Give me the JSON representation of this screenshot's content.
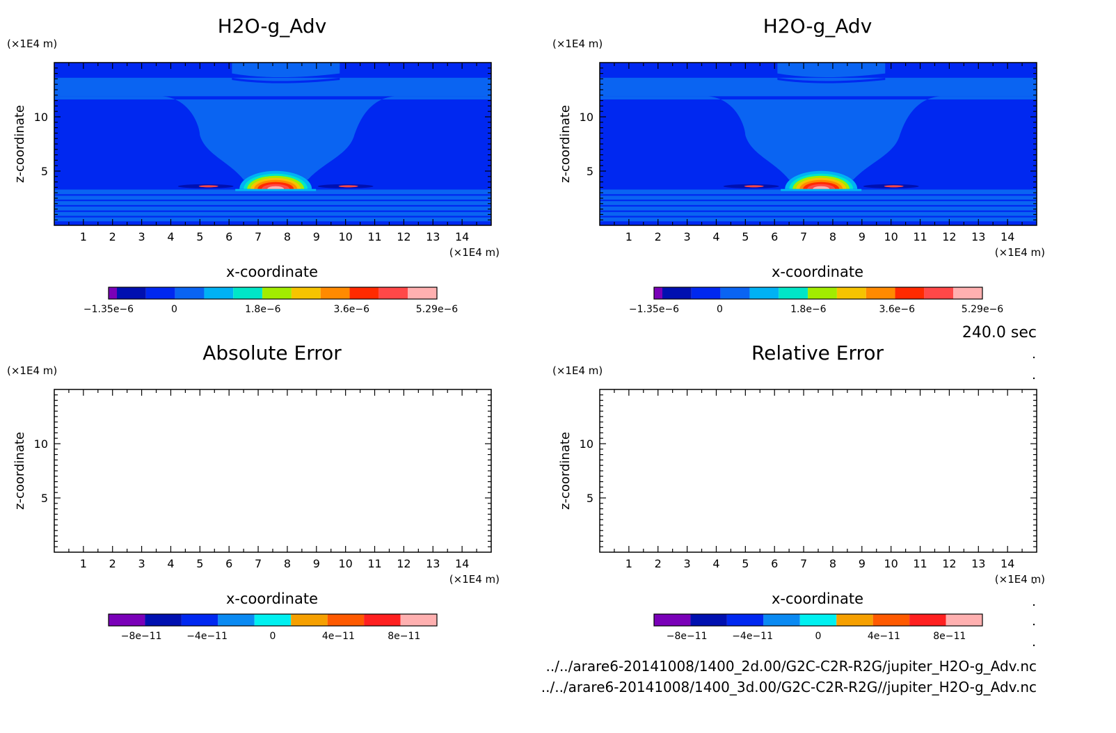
{
  "time_label": "240.0 sec",
  "files": [
    "../../arare6-20141008/1400_2d.00/G2C-C2R-R2G/jupiter_H2O-g_Adv.nc",
    "../../arare6-20141008/1400_3d.00/G2C-C2R-R2G//jupiter_H2O-g_Adv.nc"
  ],
  "chart_data": [
    {
      "type": "heatmap",
      "title": "H2O-g_Adv",
      "xlabel": "x-coordinate",
      "ylabel": "z-coordinate",
      "x_unit": "(×1E4 m)",
      "y_unit": "(×1E4 m)",
      "xlim": [
        0,
        15
      ],
      "ylim": [
        0,
        15
      ],
      "x_ticks": [
        "1",
        "2",
        "3",
        "4",
        "5",
        "6",
        "7",
        "8",
        "9",
        "10",
        "11",
        "12",
        "13",
        "14"
      ],
      "y_ticks": [
        "5",
        "10"
      ],
      "colorbar": {
        "colors": [
          "#7a00b8",
          "#0010b0",
          "#0028f0",
          "#0a64f2",
          "#00b2f4",
          "#00e6c8",
          "#a2ec00",
          "#f6c400",
          "#ff8a00",
          "#ff2a00",
          "#ff4848",
          "#ffb0b0"
        ],
        "tick_labels": [
          "-1.35e-6",
          "0",
          "1.8e-6",
          "3.6e-6",
          "5.29e-6"
        ],
        "tick_fractions": [
          0.0,
          0.2,
          0.47,
          0.74,
          1.0
        ]
      },
      "field": {
        "background_level": "#0028f0",
        "bands_level": "#0a64f2",
        "peak_location_x": 7.6,
        "peak_location_z": 3.8
      }
    },
    {
      "type": "heatmap",
      "title": "H2O-g_Adv",
      "xlabel": "x-coordinate",
      "ylabel": "z-coordinate",
      "x_unit": "(×1E4 m)",
      "y_unit": "(×1E4 m)",
      "xlim": [
        0,
        15
      ],
      "ylim": [
        0,
        15
      ],
      "x_ticks": [
        "1",
        "2",
        "3",
        "4",
        "5",
        "6",
        "7",
        "8",
        "9",
        "10",
        "11",
        "12",
        "13",
        "14"
      ],
      "y_ticks": [
        "5",
        "10"
      ],
      "colorbar": {
        "colors": [
          "#7a00b8",
          "#0010b0",
          "#0028f0",
          "#0a64f2",
          "#00b2f4",
          "#00e6c8",
          "#a2ec00",
          "#f6c400",
          "#ff8a00",
          "#ff2a00",
          "#ff4848",
          "#ffb0b0"
        ],
        "tick_labels": [
          "-1.35e-6",
          "0",
          "1.8e-6",
          "3.6e-6",
          "5.29e-6"
        ],
        "tick_fractions": [
          0.0,
          0.2,
          0.47,
          0.74,
          1.0
        ]
      },
      "field": {
        "background_level": "#0028f0",
        "bands_level": "#0a64f2",
        "peak_location_x": 7.6,
        "peak_location_z": 3.8
      }
    },
    {
      "type": "heatmap",
      "title": "Absolute Error",
      "xlabel": "x-coordinate",
      "ylabel": "z-coordinate",
      "x_unit": "(×1E4 m)",
      "y_unit": "(×1E4 m)",
      "xlim": [
        0,
        15
      ],
      "ylim": [
        0,
        15
      ],
      "x_ticks": [
        "1",
        "2",
        "3",
        "4",
        "5",
        "6",
        "7",
        "8",
        "9",
        "10",
        "11",
        "12",
        "13",
        "14"
      ],
      "y_ticks": [
        "5",
        "10"
      ],
      "colorbar": {
        "colors": [
          "#7a00b8",
          "#0010b0",
          "#0028f0",
          "#0a8af2",
          "#00f0f0",
          "#f6a000",
          "#ff5a00",
          "#ff2020",
          "#ffb0b0"
        ],
        "tick_labels": [
          "-8e-11",
          "-4e-11",
          "0",
          "4e-11",
          "8e-11"
        ],
        "tick_fractions": [
          0.1,
          0.3,
          0.5,
          0.7,
          0.9
        ]
      },
      "field": null
    },
    {
      "type": "heatmap",
      "title": "Relative Error",
      "xlabel": "x-coordinate",
      "ylabel": "z-coordinate",
      "x_unit": "(×1E4 m)",
      "y_unit": "(×1E4 m)",
      "xlim": [
        0,
        15
      ],
      "ylim": [
        0,
        15
      ],
      "x_ticks": [
        "1",
        "2",
        "3",
        "4",
        "5",
        "6",
        "7",
        "8",
        "9",
        "10",
        "11",
        "12",
        "13",
        "14"
      ],
      "y_ticks": [
        "5",
        "10"
      ],
      "colorbar": {
        "colors": [
          "#7a00b8",
          "#0010b0",
          "#0028f0",
          "#0a8af2",
          "#00f0f0",
          "#f6a000",
          "#ff5a00",
          "#ff2020",
          "#ffb0b0"
        ],
        "tick_labels": [
          "-8e-11",
          "-4e-11",
          "0",
          "4e-11",
          "8e-11"
        ],
        "tick_fractions": [
          0.1,
          0.3,
          0.5,
          0.7,
          0.9
        ]
      },
      "field": null
    }
  ]
}
